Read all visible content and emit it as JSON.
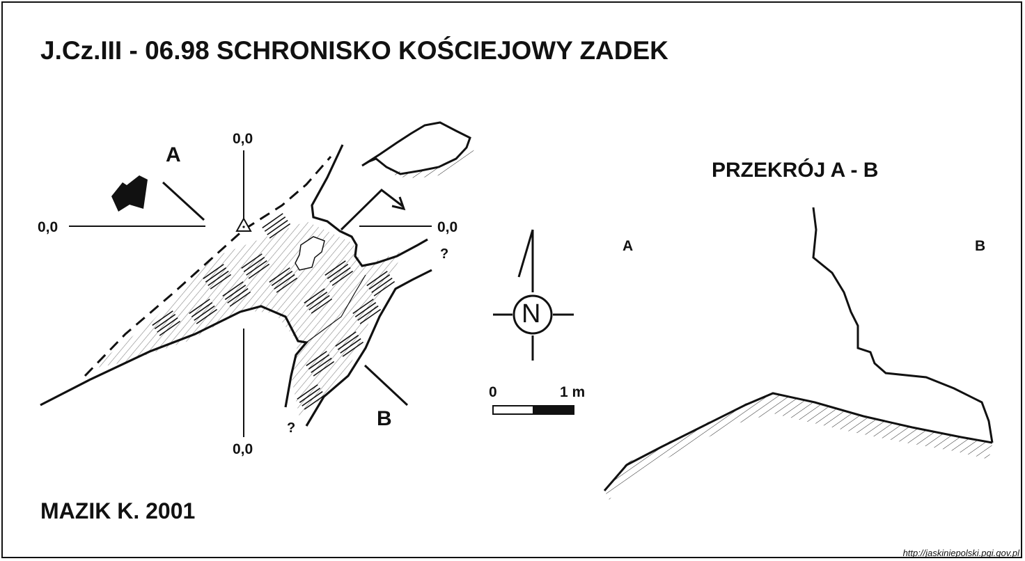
{
  "title": "J.Cz.III - 06.98  SCHRONISKO KOŚCIEJOWY ZADEK",
  "author": "MAZIK K. 2001",
  "plan": {
    "marker_a": "A",
    "marker_b": "B",
    "datum_top": "0,0",
    "datum_left": "0,0",
    "datum_right": "0,0",
    "datum_bottom": "0,0",
    "unknown_right": "?",
    "unknown_bottom": "?"
  },
  "north_arrow": {
    "letter": "N"
  },
  "scale_bar": {
    "start": "0",
    "end": "1 m"
  },
  "section": {
    "title": "PRZEKRÓJ A - B",
    "end_a": "A",
    "end_b": "B"
  },
  "source_url": "http://jaskiniepolski.pgi.gov.pl",
  "colors": {
    "ink": "#111111",
    "background": "#ffffff"
  }
}
